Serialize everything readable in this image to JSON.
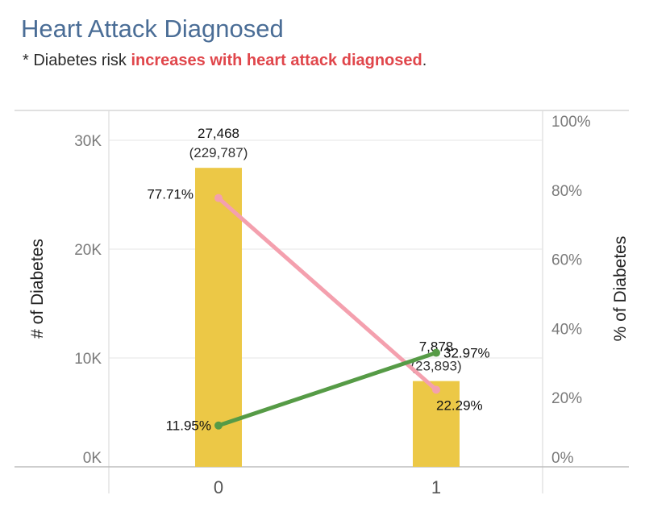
{
  "title": "Heart Attack Diagnosed",
  "subtitle": {
    "prefix": "* Diabetes risk ",
    "highlight": "increases with heart attack diagnosed",
    "suffix": "."
  },
  "colors": {
    "title": "#4a6d96",
    "highlight": "#e0464b",
    "bar": "#ecc846",
    "pink_line": "#f4a0ae",
    "green_line": "#569b46",
    "grid": "#e6e6e6"
  },
  "chart_data": {
    "type": "bar",
    "categories": [
      "0",
      "1"
    ],
    "left_axis": {
      "label": "# of Diabetes",
      "ylim": [
        0,
        32000
      ],
      "ticks": [
        0,
        10000,
        20000,
        30000
      ],
      "tick_labels": [
        "0K",
        "10K",
        "20K",
        "30K"
      ]
    },
    "right_axis": {
      "label": "% of Diabetes",
      "ylim": [
        0,
        100
      ],
      "ticks": [
        0,
        20,
        40,
        60,
        80,
        100
      ],
      "tick_labels": [
        "0%",
        "20%",
        "40%",
        "60%",
        "80%",
        "100%"
      ]
    },
    "bars": {
      "values": [
        27468,
        7878
      ],
      "labels": [
        "27,468",
        "7,878"
      ],
      "totals": [
        "(229,787)",
        "(23,893)"
      ]
    },
    "lines": [
      {
        "color": "pink",
        "values": [
          77.71,
          22.29
        ],
        "labels": [
          "77.71%",
          "22.29%"
        ]
      },
      {
        "color": "green",
        "values": [
          11.95,
          32.97
        ],
        "labels": [
          "11.95%",
          "32.97%"
        ]
      }
    ],
    "grid": true
  }
}
